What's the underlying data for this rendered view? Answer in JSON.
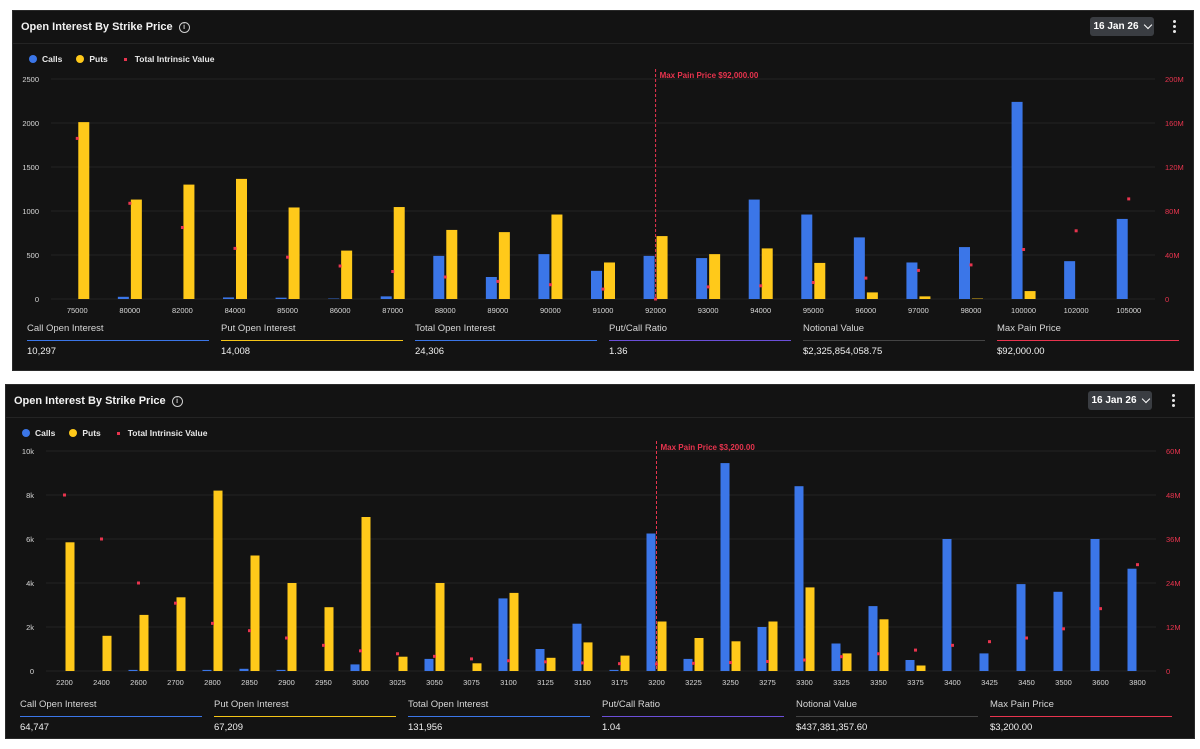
{
  "panels": [
    {
      "title": "Open Interest By Strike Price",
      "date_label": "16 Jan 26",
      "legend": {
        "calls": "Calls",
        "puts": "Puts",
        "intrinsic": "Total Intrinsic Value"
      },
      "stats": [
        {
          "label": "Call Open Interest",
          "value": "10,297",
          "color": "#3b76e8"
        },
        {
          "label": "Put Open Interest",
          "value": "14,008",
          "color": "#f5c518"
        },
        {
          "label": "Total Open Interest",
          "value": "24,306",
          "color": "#3b76e8"
        },
        {
          "label": "Put/Call Ratio",
          "value": "1.36",
          "color": "#6b4fd8"
        },
        {
          "label": "Notional Value",
          "value": "$2,325,854,058.75",
          "color": "#444444"
        },
        {
          "label": "Max Pain Price",
          "value": "$92,000.00",
          "color": "#e8344e"
        }
      ],
      "chart_data": {
        "type": "bar",
        "categories": [
          "75000",
          "80000",
          "82000",
          "84000",
          "85000",
          "86000",
          "87000",
          "88000",
          "89000",
          "90000",
          "91000",
          "92000",
          "93000",
          "94000",
          "95000",
          "96000",
          "97000",
          "98000",
          "100000",
          "102000",
          "105000"
        ],
        "series": [
          {
            "name": "Calls",
            "values": [
              0,
              25,
              0,
              18,
              15,
              5,
              30,
              490,
              250,
              510,
              320,
              490,
              465,
              1130,
              960,
              700,
              415,
              590,
              2240,
              430,
              910
            ]
          },
          {
            "name": "Puts",
            "values": [
              2010,
              1130,
              1300,
              1365,
              1040,
              550,
              1045,
              785,
              760,
              960,
              415,
              715,
              510,
              575,
              410,
              75,
              30,
              5,
              90,
              0,
              0
            ]
          },
          {
            "name": "Total Intrinsic Value",
            "values": [
              146000000,
              87000000,
              65000000,
              46000000,
              38000000,
              30000000,
              25000000,
              20000000,
              16000000,
              13000000,
              9000000,
              0,
              11000000,
              12000000,
              15000000,
              19000000,
              26000000,
              31000000,
              45000000,
              62000000,
              91000000
            ]
          }
        ],
        "y_left": {
          "min": 0,
          "max": 2500,
          "ticks": [
            "0",
            "500",
            "1000",
            "1500",
            "2000",
            "2500"
          ]
        },
        "y_right": {
          "min": 0,
          "max": 200000000,
          "ticks": [
            "0",
            "40M",
            "80M",
            "120M",
            "160M",
            "200M"
          ]
        },
        "max_pain": {
          "category": "92000",
          "label": "Max Pain Price $92,000.00"
        },
        "colors": {
          "calls": "#3b76e8",
          "puts": "#ffc91a",
          "intrinsic": "#e8344e"
        },
        "legend_position": "top-left",
        "grid": true
      }
    },
    {
      "title": "Open Interest By Strike Price",
      "date_label": "16 Jan 26",
      "legend": {
        "calls": "Calls",
        "puts": "Puts",
        "intrinsic": "Total Intrinsic Value"
      },
      "stats": [
        {
          "label": "Call Open Interest",
          "value": "64,747",
          "color": "#3b76e8"
        },
        {
          "label": "Put Open Interest",
          "value": "67,209",
          "color": "#f5c518"
        },
        {
          "label": "Total Open Interest",
          "value": "131,956",
          "color": "#3b76e8"
        },
        {
          "label": "Put/Call Ratio",
          "value": "1.04",
          "color": "#6b4fd8"
        },
        {
          "label": "Notional Value",
          "value": "$437,381,357.60",
          "color": "#444444"
        },
        {
          "label": "Max Pain Price",
          "value": "$3,200.00",
          "color": "#e8344e"
        }
      ],
      "chart_data": {
        "type": "bar",
        "categories": [
          "2200",
          "2400",
          "2600",
          "2700",
          "2800",
          "2850",
          "2900",
          "2950",
          "3000",
          "3025",
          "3050",
          "3075",
          "3100",
          "3125",
          "3150",
          "3175",
          "3200",
          "3225",
          "3250",
          "3275",
          "3300",
          "3325",
          "3350",
          "3375",
          "3400",
          "3425",
          "3450",
          "3500",
          "3600",
          "3800"
        ],
        "series": [
          {
            "name": "Calls",
            "values": [
              0,
              0,
              50,
              0,
              50,
              100,
              50,
              0,
              300,
              0,
              550,
              0,
              3300,
              1000,
              2150,
              50,
              6250,
              550,
              9450,
              2000,
              8400,
              1250,
              2950,
              500,
              6000,
              800,
              3950,
              3600,
              6000,
              4650
            ]
          },
          {
            "name": "Puts",
            "values": [
              5850,
              1600,
              2550,
              3350,
              8200,
              5250,
              4000,
              2900,
              7000,
              650,
              4000,
              350,
              3550,
              600,
              1300,
              700,
              2250,
              1500,
              1350,
              2250,
              3800,
              800,
              2350,
              250,
              0,
              0,
              0,
              0,
              0,
              0
            ]
          },
          {
            "name": "Total Intrinsic Value",
            "values": [
              48000000,
              36000000,
              24000000,
              18500000,
              13000000,
              11000000,
              9000000,
              7000000,
              5500000,
              4700000,
              4000000,
              3300000,
              2800000,
              2500000,
              2200000,
              2000000,
              1900000,
              2100000,
              2300000,
              2600000,
              3000000,
              3900000,
              4700000,
              5700000,
              7000000,
              8000000,
              9000000,
              11500000,
              17000000,
              29000000
            ]
          }
        ],
        "y_left": {
          "min": 0,
          "max": 10000,
          "ticks": [
            "0",
            "2k",
            "4k",
            "6k",
            "8k",
            "10k"
          ]
        },
        "y_right": {
          "min": 0,
          "max": 60000000,
          "ticks": [
            "0",
            "12M",
            "24M",
            "36M",
            "48M",
            "60M"
          ]
        },
        "max_pain": {
          "category": "3200",
          "label": "Max Pain Price $3,200.00"
        },
        "colors": {
          "calls": "#3b76e8",
          "puts": "#ffc91a",
          "intrinsic": "#e8344e"
        },
        "legend_position": "top-left",
        "grid": true
      }
    }
  ]
}
